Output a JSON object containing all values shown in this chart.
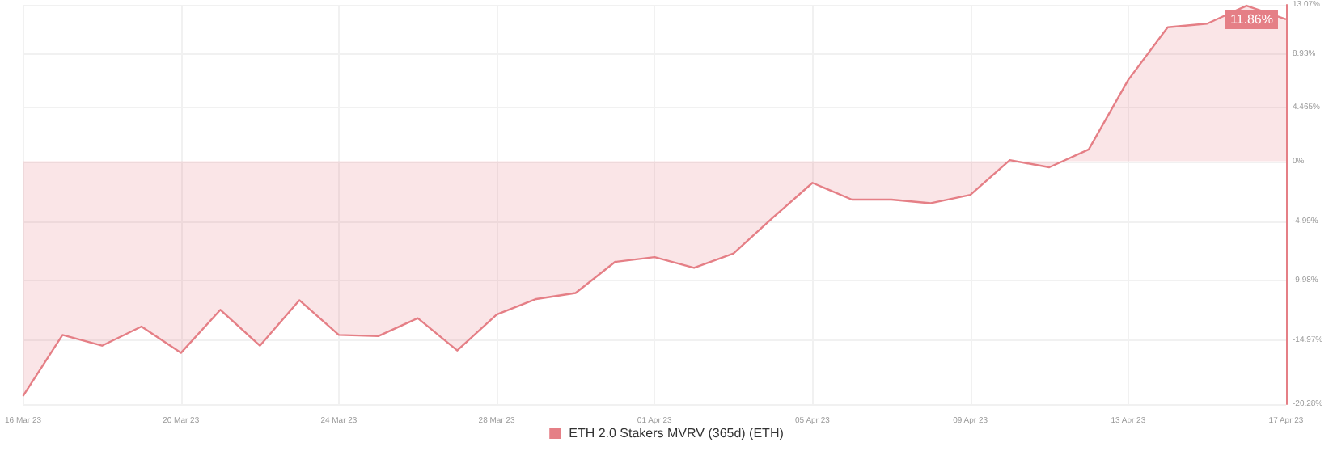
{
  "chart_data": {
    "type": "area",
    "x": [
      "--03-16",
      "--03-17",
      "--03-18",
      "--03-19",
      "--03-20",
      "--03-21",
      "--03-22",
      "--03-23",
      "--03-24",
      "--03-25",
      "--03-26",
      "--03-27",
      "--03-28",
      "--03-29",
      "--03-30",
      "--03-31",
      "--04-01",
      "--04-02",
      "--04-03",
      "--04-04",
      "--04-05",
      "--04-06",
      "--04-07",
      "--04-08",
      "--04-09",
      "--04-10",
      "--04-11",
      "--04-12",
      "--04-13",
      "--04-14",
      "--04-15",
      "--04-16",
      "--04-17"
    ],
    "series": [
      {
        "name": "ETH 2.0 Stakers MVRV (365d) (ETH)",
        "color": "#e57f86",
        "values": [
          -19.6,
          -14.5,
          -15.4,
          -13.8,
          -16.0,
          -12.4,
          -15.4,
          -11.6,
          -14.5,
          -14.6,
          -13.1,
          -15.8,
          -12.8,
          -11.5,
          -11.0,
          -8.4,
          -8.0,
          -8.9,
          -7.7,
          -4.7,
          -1.8,
          -3.2,
          -3.2,
          -3.5,
          -2.8,
          0.1,
          -0.5,
          1.0,
          6.8,
          11.2,
          11.5,
          13.0,
          11.86
        ],
        "value_labels": [
          null,
          null,
          null,
          null,
          null,
          null,
          null,
          null,
          null,
          null,
          null,
          null,
          null,
          null,
          null,
          null,
          null,
          null,
          null,
          null,
          null,
          null,
          null,
          null,
          null,
          null,
          null,
          null,
          null,
          null,
          null,
          null,
          "11.86%"
        ]
      }
    ],
    "xlim": [
      "--03-16",
      "--04-17"
    ],
    "xticks": [
      {
        "value": "--03-16",
        "label": "16 Mar 23"
      },
      {
        "value": "--03-20",
        "label": "20 Mar 23"
      },
      {
        "value": "--03-24",
        "label": "24 Mar 23"
      },
      {
        "value": "--03-28",
        "label": "28 Mar 23"
      },
      {
        "value": "--04-01",
        "label": "01 Apr 23"
      },
      {
        "value": "--04-05",
        "label": "05 Apr 23"
      },
      {
        "value": "--04-09",
        "label": "09 Apr 23"
      },
      {
        "value": "--04-13",
        "label": "13 Apr 23"
      },
      {
        "value": "--04-17",
        "label": "17 Apr 23"
      }
    ],
    "ylim": [
      -20.28,
      13.07
    ],
    "yticks": [
      {
        "value": 13.07,
        "label": "13.07%"
      },
      {
        "value": 8.93,
        "label": "8.93%"
      },
      {
        "value": 4.465,
        "label": "4.465%"
      },
      {
        "value": 0,
        "label": "0%"
      },
      {
        "value": -4.99,
        "label": "-4.99%"
      },
      {
        "value": -9.98,
        "label": "-9.98%"
      },
      {
        "value": -14.97,
        "label": "-14.97%"
      },
      {
        "value": -20.28,
        "label": "-20.28%"
      }
    ],
    "grid": true,
    "legend": "bottom",
    "marker": "none",
    "line_style": "solid"
  }
}
